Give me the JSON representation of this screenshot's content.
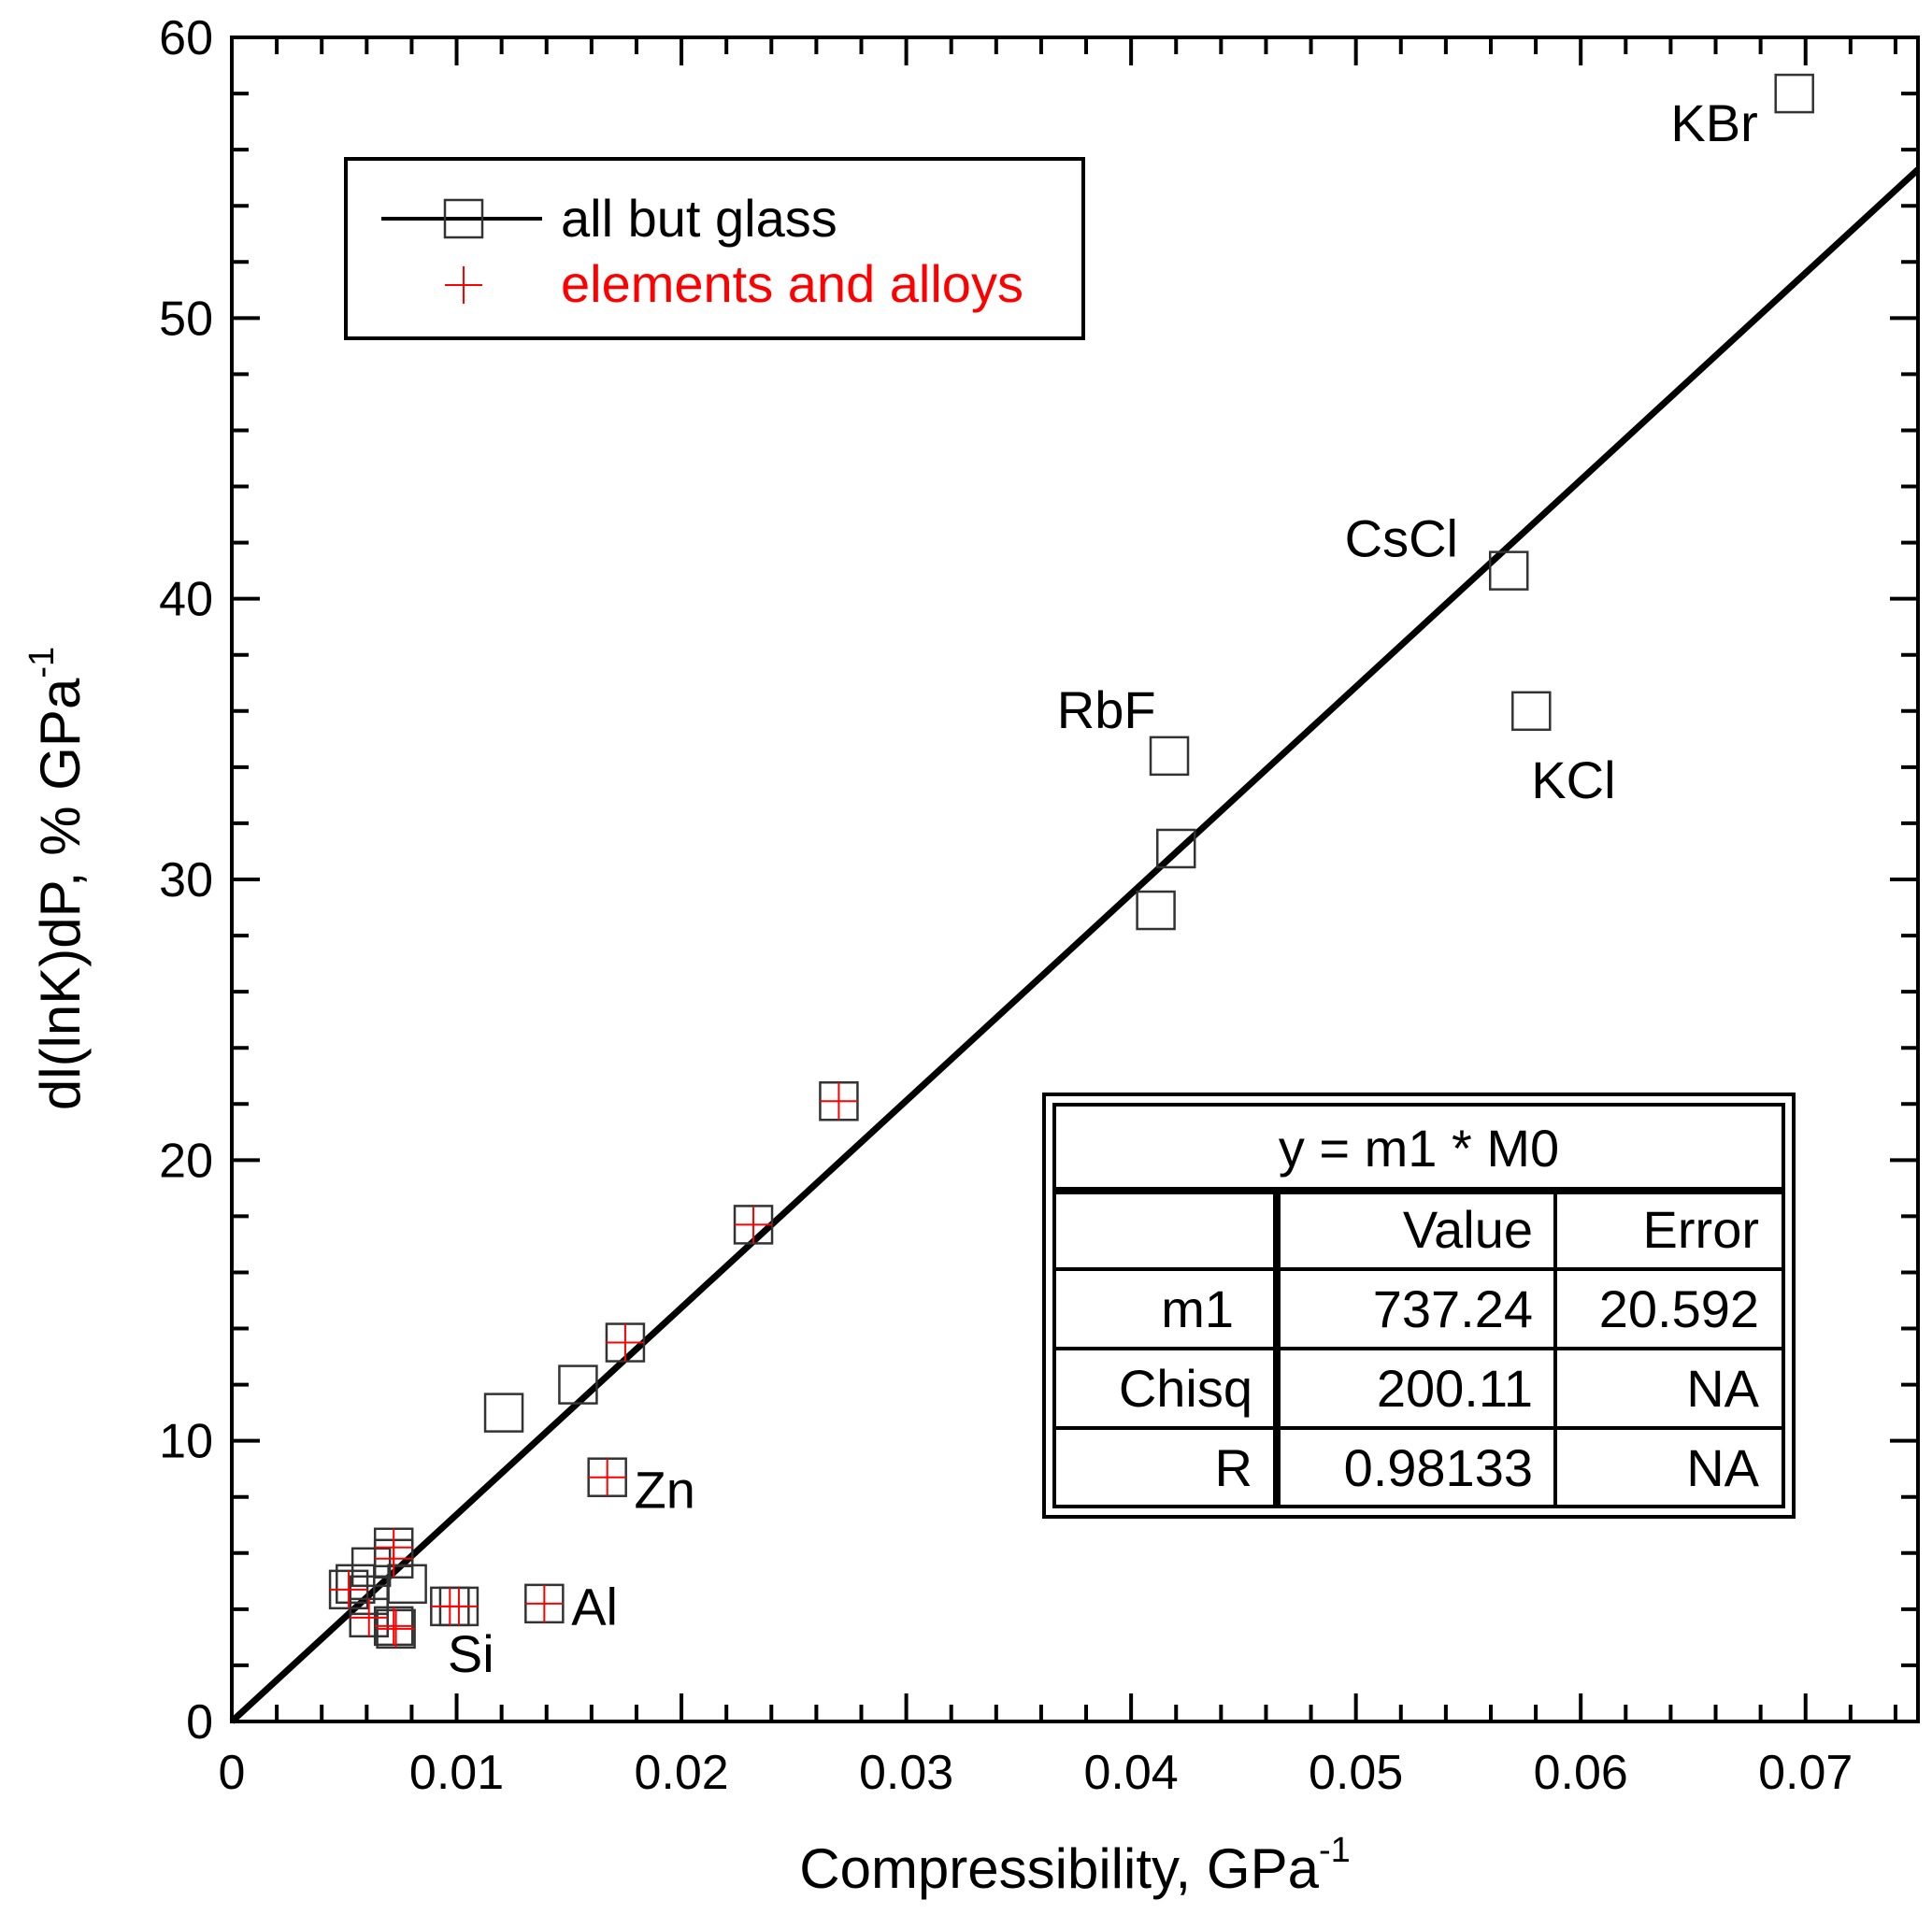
{
  "chart_data": {
    "type": "scatter",
    "xlabel": "Compressibility, GPa",
    "xlabel_sup": "-1",
    "ylabel": "dl(lnK)dP, % GPa",
    "ylabel_sup": "-1",
    "xlim": [
      0,
      0.075
    ],
    "ylim": [
      0,
      60
    ],
    "xticks": [
      0,
      0.01,
      0.02,
      0.03,
      0.04,
      0.05,
      0.06,
      0.07
    ],
    "xtick_labels": [
      "0",
      "0.01",
      "0.02",
      "0.03",
      "0.04",
      "0.05",
      "0.06",
      "0.07"
    ],
    "yticks": [
      0,
      10,
      20,
      30,
      40,
      50,
      60
    ],
    "ytick_labels": [
      "0",
      "10",
      "20",
      "30",
      "40",
      "50",
      "60"
    ],
    "legend": {
      "placement": "top-left",
      "entries": [
        "all but glass",
        "elements and alloys"
      ]
    },
    "colors": {
      "all": "#333333",
      "elements": "#ff0000",
      "fit": "#000000"
    },
    "series": [
      {
        "name": "all but glass",
        "points": [
          [
            0.0695,
            58.0
          ],
          [
            0.0568,
            41.0
          ],
          [
            0.0578,
            36.0
          ],
          [
            0.0417,
            34.4
          ],
          [
            0.042,
            31.1
          ],
          [
            0.0411,
            28.9
          ],
          [
            0.027,
            22.1
          ],
          [
            0.0232,
            17.7
          ],
          [
            0.0175,
            13.5
          ],
          [
            0.0154,
            12.0
          ],
          [
            0.0121,
            11.0
          ],
          [
            0.0167,
            8.7
          ],
          [
            0.0139,
            4.2
          ],
          [
            0.0097,
            4.1
          ],
          [
            0.0101,
            4.1
          ],
          [
            0.0072,
            6.2
          ],
          [
            0.0072,
            5.8
          ],
          [
            0.0062,
            5.5
          ],
          [
            0.0078,
            4.9
          ],
          [
            0.0052,
            4.7
          ],
          [
            0.0055,
            4.9
          ],
          [
            0.0061,
            4.5
          ],
          [
            0.0061,
            3.7
          ],
          [
            0.0072,
            3.4
          ],
          [
            0.0073,
            3.3
          ]
        ]
      },
      {
        "name": "elements and alloys",
        "points": [
          [
            0.027,
            22.1
          ],
          [
            0.0232,
            17.7
          ],
          [
            0.0175,
            13.5
          ],
          [
            0.0167,
            8.7
          ],
          [
            0.0139,
            4.2
          ],
          [
            0.0097,
            4.1
          ],
          [
            0.0101,
            4.1
          ],
          [
            0.0072,
            6.2
          ],
          [
            0.0072,
            5.8
          ],
          [
            0.0052,
            4.7
          ],
          [
            0.0061,
            3.7
          ],
          [
            0.0072,
            3.4
          ],
          [
            0.0073,
            3.3
          ]
        ]
      }
    ],
    "fit": {
      "slope": 737.24,
      "x_range": [
        0,
        0.075
      ]
    },
    "annotations": [
      {
        "text": "KBr",
        "x": 0.064,
        "y": 56.3
      },
      {
        "text": "CsCl",
        "x": 0.0495,
        "y": 41.5
      },
      {
        "text": "KCl",
        "x": 0.0578,
        "y": 32.9
      },
      {
        "text": "RbF",
        "x": 0.0367,
        "y": 35.4
      },
      {
        "text": "Zn",
        "x": 0.0179,
        "y": 7.6
      },
      {
        "text": "Al",
        "x": 0.0151,
        "y": 3.45
      },
      {
        "text": "Si",
        "x": 0.0096,
        "y": 1.76
      }
    ],
    "fit_table": {
      "equation": "y = m1 * M0",
      "headers": [
        "",
        "Value",
        "Error"
      ],
      "rows": [
        [
          "m1",
          "737.24",
          "20.592"
        ],
        [
          "Chisq",
          "200.11",
          "NA"
        ],
        [
          "R",
          "0.98133",
          "NA"
        ]
      ]
    }
  }
}
